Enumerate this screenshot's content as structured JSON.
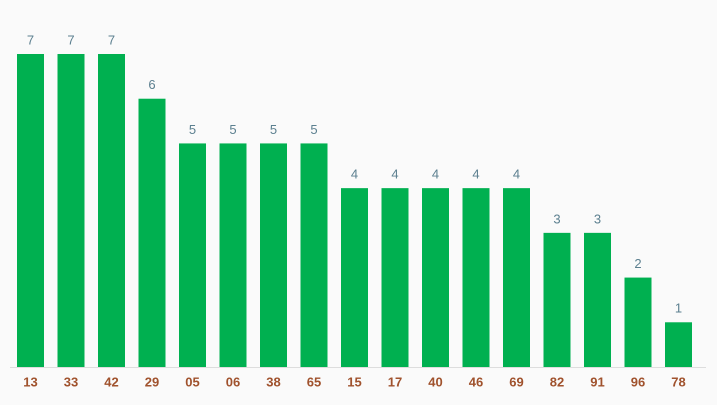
{
  "chart_data": {
    "type": "bar",
    "categories": [
      "13",
      "33",
      "42",
      "29",
      "05",
      "06",
      "38",
      "65",
      "15",
      "17",
      "40",
      "46",
      "69",
      "82",
      "91",
      "96",
      "78"
    ],
    "values": [
      7,
      7,
      7,
      6,
      5,
      5,
      5,
      5,
      4,
      4,
      4,
      4,
      4,
      3,
      3,
      2,
      1
    ],
    "color": "#00b050"
  }
}
